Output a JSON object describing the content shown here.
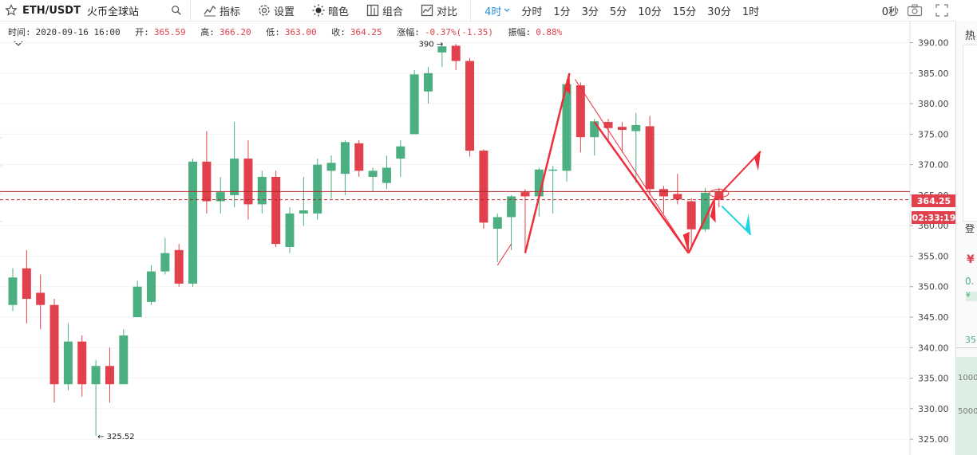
{
  "header": {
    "pair": "ETH/USDT",
    "exchange": "火币全球站",
    "tools": [
      {
        "name": "indicators",
        "label": "指标"
      },
      {
        "name": "settings",
        "label": "设置"
      },
      {
        "name": "dark",
        "label": "暗色"
      },
      {
        "name": "combo",
        "label": "组合"
      },
      {
        "name": "compare",
        "label": "对比"
      }
    ],
    "timeframes": [
      "4时",
      "分时",
      "1分",
      "3分",
      "5分",
      "10分",
      "15分",
      "30分",
      "1时"
    ],
    "active_timeframe": "4时",
    "refresh": "0秒"
  },
  "info": {
    "time_label": "时间:",
    "time": "2020-09-16 16:00",
    "open_label": "开:",
    "open": "365.59",
    "high_label": "高:",
    "high": "366.20",
    "low_label": "低:",
    "low": "363.00",
    "close_label": "收:",
    "close": "364.25",
    "change_label": "涨幅:",
    "change": "-0.37%(-1.35)",
    "amp_label": "振幅:",
    "amp": "0.88%"
  },
  "colors": {
    "up": "#4caf82",
    "down": "#e0414d",
    "accent": "#2a8fd6",
    "arrow_red": "#ee2e3a",
    "arrow_cyan": "#1fd4e0"
  },
  "chart_data": {
    "type": "candlestick",
    "yaxis_ticks": [
      325,
      330,
      335,
      340,
      345,
      350,
      355,
      360,
      365,
      370,
      375,
      380,
      385,
      390
    ],
    "yaxis_labels": [
      "325.00",
      "330.00",
      "335.00",
      "340.00",
      "345.00",
      "350.00",
      "355.00",
      "360.00",
      "365.00",
      "370.00",
      "375.00",
      "380.00",
      "385.00",
      "390.00"
    ],
    "ylim": [
      322.4,
      393.6
    ],
    "candles": [
      [
        347,
        351.5,
        346,
        353
      ],
      [
        353,
        348,
        344,
        356
      ],
      [
        349,
        347,
        343,
        352
      ],
      [
        347,
        334,
        331,
        348
      ],
      [
        334,
        341,
        333,
        344
      ],
      [
        341,
        334,
        332,
        342
      ],
      [
        334,
        337,
        325.52,
        338
      ],
      [
        337,
        334,
        331,
        340
      ],
      [
        334,
        342,
        334,
        343
      ],
      [
        345,
        350,
        345,
        351
      ],
      [
        347.5,
        352.5,
        347,
        353.5
      ],
      [
        352.5,
        355.5,
        352,
        358
      ],
      [
        356,
        350.5,
        350,
        357
      ],
      [
        350.5,
        370.5,
        350,
        371
      ],
      [
        370.5,
        364,
        362,
        375.5
      ],
      [
        364,
        365.5,
        362,
        368
      ],
      [
        365,
        371,
        363,
        377
      ],
      [
        371,
        363.5,
        361,
        374
      ],
      [
        363.5,
        368,
        362,
        369
      ],
      [
        368,
        357,
        356.5,
        369
      ],
      [
        356.5,
        362,
        355.5,
        363
      ],
      [
        362,
        362.5,
        360,
        368
      ],
      [
        362,
        370,
        361,
        371
      ],
      [
        369,
        370.3,
        364.5,
        371.5
      ],
      [
        368.5,
        373.7,
        365,
        374
      ],
      [
        373.5,
        369,
        368,
        374
      ],
      [
        368,
        369,
        365.5,
        369.5
      ],
      [
        367,
        369.5,
        366,
        371.5
      ],
      [
        371,
        373,
        368,
        374
      ],
      [
        375,
        384.8,
        375,
        385.5
      ],
      [
        382,
        385,
        380,
        386
      ],
      [
        388.4,
        389.4,
        386,
        390
      ],
      [
        389.5,
        387,
        385.5,
        389.8
      ],
      [
        387,
        372.3,
        371.3,
        387.5
      ],
      [
        372.3,
        360.5,
        359.5,
        372.5
      ],
      [
        359.5,
        361.4,
        354,
        362
      ],
      [
        361.4,
        364.8,
        356,
        365
      ],
      [
        365.5,
        364.8,
        355.5,
        366
      ],
      [
        364.8,
        369.2,
        361.5,
        369.5
      ],
      [
        369.2,
        369.2,
        362,
        369.8
      ],
      [
        369,
        383.2,
        367.2,
        384
      ],
      [
        383,
        374.5,
        372,
        383.5
      ],
      [
        374.5,
        377.1,
        371.5,
        377.5
      ],
      [
        377,
        376,
        374,
        377.5
      ],
      [
        376.2,
        375.7,
        372,
        377
      ],
      [
        375.5,
        376.5,
        367,
        378.5
      ],
      [
        376.3,
        366,
        365,
        378
      ],
      [
        366,
        364.8,
        362,
        366.5
      ],
      [
        365.2,
        364.3,
        363.5,
        368.5
      ],
      [
        364,
        359.4,
        356,
        364.5
      ],
      [
        359.4,
        365.4,
        359,
        366.2
      ],
      [
        365.59,
        364.25,
        363,
        366.2
      ]
    ],
    "last_price": "364.25",
    "countdown": "02:33:19",
    "high_marker": "390 →",
    "low_marker": "← 325.52",
    "high_value": 390,
    "low_value": 325.52
  },
  "right_panel": {
    "labels": [
      "热",
      "登",
      "¥",
      "0.",
      "¥",
      "35",
      "1000",
      "5000"
    ]
  }
}
